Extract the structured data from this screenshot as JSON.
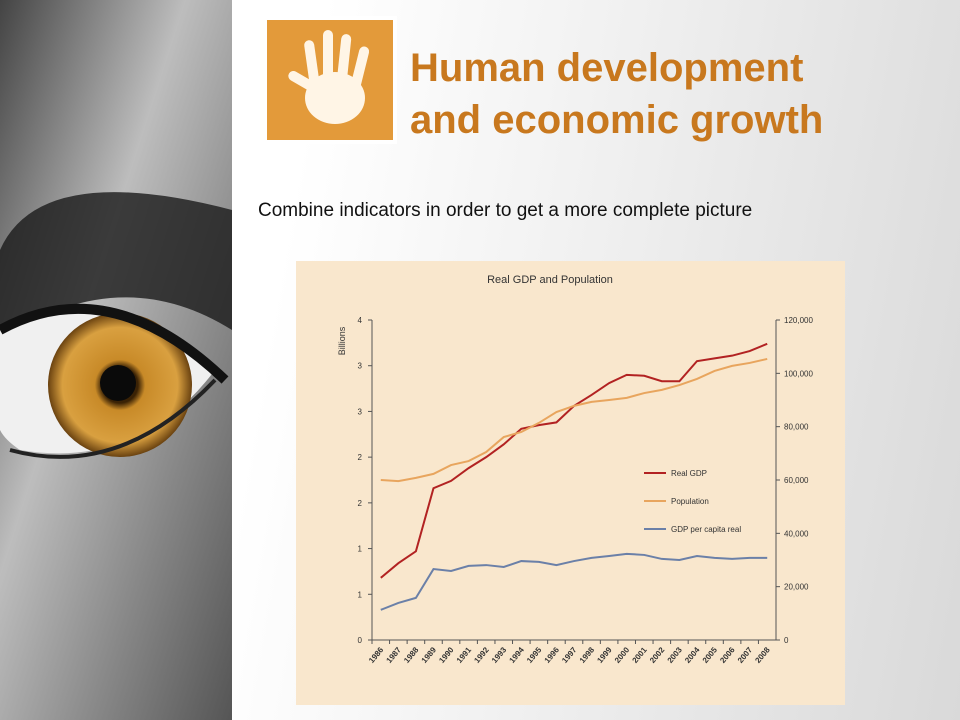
{
  "slide": {
    "title_lines": [
      "Human development",
      "and economic growth"
    ],
    "subtitle": "Combine indicators in order to get a more complete picture"
  },
  "chart_data": {
    "type": "line",
    "title": "Real GDP and Population",
    "y_label": "Billions",
    "categories": [
      "1986",
      "1987",
      "1988",
      "1989",
      "1990",
      "1991",
      "1992",
      "1993",
      "1994",
      "1995",
      "1996",
      "1997",
      "1998",
      "1999",
      "2000",
      "2001",
      "2002",
      "2003",
      "2004",
      "2005",
      "2006",
      "2007",
      "2008"
    ],
    "series": [
      {
        "name": "Real GDP",
        "color": "#b22222",
        "axis": "y",
        "values": [
          0.68,
          0.84,
          0.97,
          1.66,
          1.74,
          1.88,
          2.0,
          2.14,
          2.31,
          2.35,
          2.38,
          2.56,
          2.68,
          2.81,
          2.9,
          2.89,
          2.83,
          2.83,
          3.05,
          3.08,
          3.11,
          3.16,
          3.24
        ]
      },
      {
        "name": "Population",
        "color": "#e8a55e",
        "axis": "y2",
        "values": [
          60000,
          59600,
          60800,
          62300,
          65600,
          67100,
          70500,
          76100,
          78000,
          81400,
          85500,
          87800,
          89300,
          90000,
          90800,
          92600,
          93800,
          95600,
          97900,
          100900,
          102800,
          103900,
          105400
        ]
      },
      {
        "name": "GDP per capita real",
        "color": "#6b80a8",
        "axis": "y2",
        "values": [
          11300,
          13900,
          15800,
          26600,
          25900,
          27800,
          28100,
          27400,
          29600,
          29300,
          28100,
          29600,
          30800,
          31500,
          32300,
          31900,
          30400,
          30000,
          31500,
          30800,
          30400,
          30800,
          30800
        ]
      }
    ],
    "ylim": [
      0,
      3.5
    ],
    "yticks": [
      0,
      {
        "value": 0.5,
        "label": "1"
      },
      1,
      {
        "value": 1.5,
        "label": "2"
      },
      2,
      {
        "value": 2.5,
        "label": "3"
      },
      3,
      {
        "value": 3.5,
        "label": "4"
      }
    ],
    "y2lim": [
      0,
      120000
    ],
    "y2ticks": [
      0,
      {
        "value": 20000,
        "label": "20,000"
      },
      {
        "value": 40000,
        "label": "40,000"
      },
      {
        "value": 60000,
        "label": "60,000"
      },
      {
        "value": 80000,
        "label": "80,000"
      },
      {
        "value": 100000,
        "label": "100,000"
      },
      {
        "value": 120000,
        "label": "120,000"
      }
    ],
    "legend_position": "right",
    "background": "#f9e7cd"
  }
}
